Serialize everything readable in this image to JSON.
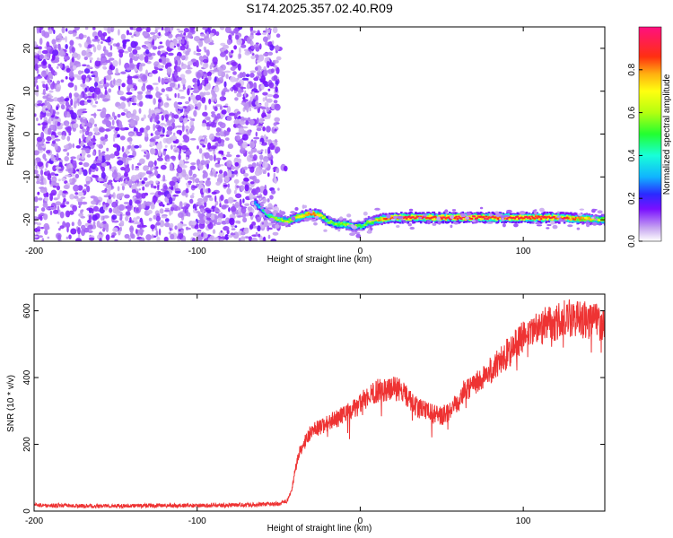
{
  "title": "S174.2025.357.02.40.R09",
  "chart_data": [
    {
      "type": "heatmap",
      "xlabel": "Height of straight line (km)",
      "ylabel": "Frequency (Hz)",
      "xlim": [
        -200,
        150
      ],
      "ylim": [
        -25,
        25
      ],
      "x_ticks": [
        -200,
        -100,
        0,
        100
      ],
      "y_ticks": [
        -20,
        -10,
        0,
        10,
        20
      ],
      "colorbar": {
        "label": "Normalized spectral amplitude",
        "range": [
          0,
          1
        ],
        "ticks": [
          "0.0",
          "0.2",
          "0.4",
          "0.6",
          "0.8"
        ]
      },
      "noise_region_x": [
        -200,
        -50
      ],
      "ridge": {
        "x": [
          -65,
          -60,
          -55,
          -50,
          -45,
          -40,
          -35,
          -30,
          -25,
          -20,
          -15,
          -10,
          -5,
          0,
          5,
          10,
          20,
          40,
          60,
          80,
          100,
          120,
          150
        ],
        "freq": [
          -16,
          -18,
          -19.5,
          -20,
          -20.5,
          -19.5,
          -19,
          -18.5,
          -19,
          -20.5,
          -21,
          -21,
          -21.5,
          -21.5,
          -20.5,
          -20,
          -19.5,
          -19.5,
          -19.5,
          -19.5,
          -19.5,
          -19.5,
          -20
        ],
        "amplitude": [
          0.3,
          0.4,
          0.55,
          0.6,
          0.65,
          0.7,
          0.75,
          0.85,
          0.7,
          0.5,
          0.55,
          0.6,
          0.55,
          0.5,
          0.6,
          0.75,
          0.9,
          0.9,
          0.92,
          0.9,
          0.92,
          0.9,
          0.6
        ]
      }
    },
    {
      "type": "line",
      "xlabel": "Height of straight line (km)",
      "ylabel": "SNR (10 * v/v)",
      "xlim": [
        -200,
        150
      ],
      "ylim": [
        0,
        650
      ],
      "x_ticks": [
        -200,
        -100,
        0,
        100
      ],
      "y_ticks": [
        0,
        200,
        400,
        600
      ],
      "color": "#ee3333",
      "series": [
        {
          "x": [
            -200,
            -180,
            -160,
            -140,
            -120,
            -100,
            -80,
            -60,
            -50,
            -45,
            -42,
            -40,
            -38,
            -35,
            -30,
            -25,
            -20,
            -15,
            -10,
            -5,
            0,
            5,
            10,
            15,
            20,
            25,
            30,
            35,
            40,
            45,
            50,
            55,
            60,
            65,
            70,
            75,
            80,
            85,
            90,
            95,
            100,
            105,
            110,
            115,
            120,
            125,
            130,
            135,
            140,
            145,
            150
          ],
          "y": [
            18,
            16,
            15,
            16,
            17,
            16,
            18,
            20,
            22,
            30,
            60,
            120,
            170,
            200,
            240,
            250,
            265,
            275,
            290,
            300,
            320,
            345,
            360,
            365,
            370,
            360,
            335,
            310,
            300,
            290,
            285,
            300,
            335,
            365,
            385,
            400,
            420,
            445,
            470,
            495,
            520,
            535,
            550,
            560,
            565,
            575,
            580,
            575,
            570,
            565,
            560
          ]
        }
      ]
    }
  ]
}
